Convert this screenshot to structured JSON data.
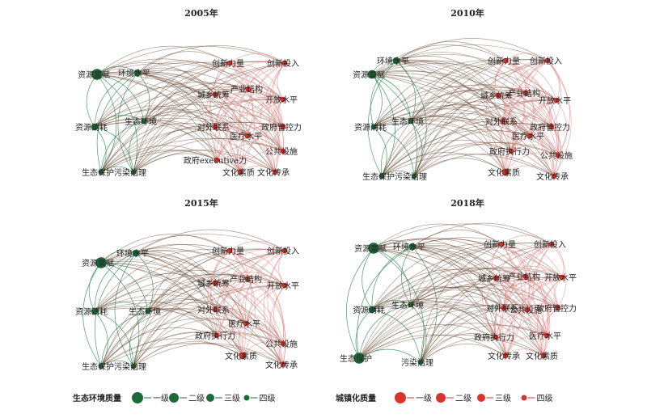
{
  "colors": {
    "eco": "#1e6b3a",
    "urban": "#d9342b",
    "eco_edge": "#2e8b57",
    "mixed_edge": "#6b4a35",
    "urban_edge": "#e07070"
  },
  "panels": [
    {
      "title": "2005年",
      "nodes": [
        {
          "label": "资源禀赋",
          "group": "eco",
          "level": 1
        },
        {
          "label": "环境水平",
          "group": "eco",
          "level": 3
        },
        {
          "label": "资源消耗",
          "group": "eco",
          "level": 3
        },
        {
          "label": "生态保护",
          "group": "eco",
          "level": 4
        },
        {
          "label": "污染治理",
          "group": "eco",
          "level": 4
        },
        {
          "label": "生态环境",
          "group": "eco",
          "level": 4
        },
        {
          "label": "创新力量",
          "group": "urban",
          "level": 4
        },
        {
          "label": "创新投入",
          "group": "urban",
          "level": 4
        },
        {
          "label": "城乡统筹",
          "group": "urban",
          "level": 4
        },
        {
          "label": "产业结构",
          "group": "urban",
          "level": 4
        },
        {
          "label": "开放水平",
          "group": "urban",
          "level": 4
        },
        {
          "label": "对外联系",
          "group": "urban",
          "level": 4
        },
        {
          "label": "政府管控力",
          "group": "urban",
          "level": 4
        },
        {
          "label": "医疗水平",
          "group": "urban",
          "level": 4
        },
        {
          "label": "公共设施",
          "group": "urban",
          "level": 4
        },
        {
          "label": "政府executive力",
          "group": "urban",
          "level": 4
        },
        {
          "label": "文化素质",
          "group": "urban",
          "level": 4
        },
        {
          "label": "文化传承",
          "group": "urban",
          "level": 4
        }
      ]
    },
    {
      "title": "2010年",
      "nodes": [
        {
          "label": "资源禀赋",
          "group": "eco",
          "level": 2
        },
        {
          "label": "环境水平",
          "group": "eco",
          "level": 3
        },
        {
          "label": "资源消耗",
          "group": "eco",
          "level": 4
        },
        {
          "label": "生态环境",
          "group": "eco",
          "level": 4
        },
        {
          "label": "生态保护",
          "group": "eco",
          "level": 4
        },
        {
          "label": "污染治理",
          "group": "eco",
          "level": 4
        },
        {
          "label": "创新力量",
          "group": "urban",
          "level": 4
        },
        {
          "label": "创新投入",
          "group": "urban",
          "level": 4
        },
        {
          "label": "城乡统筹",
          "group": "urban",
          "level": 4
        },
        {
          "label": "产业结构",
          "group": "urban",
          "level": 4
        },
        {
          "label": "开放水平",
          "group": "urban",
          "level": 4
        },
        {
          "label": "对外联系",
          "group": "urban",
          "level": 4
        },
        {
          "label": "医疗水平",
          "group": "urban",
          "level": 4
        },
        {
          "label": "政府管控力",
          "group": "urban",
          "level": 4
        },
        {
          "label": "政府执行力",
          "group": "urban",
          "level": 4
        },
        {
          "label": "公共设施",
          "group": "urban",
          "level": 4
        },
        {
          "label": "文化素质",
          "group": "urban",
          "level": 3
        },
        {
          "label": "文化传承",
          "group": "urban",
          "level": 4
        }
      ]
    },
    {
      "title": "2015年",
      "nodes": [
        {
          "label": "资源禀赋",
          "group": "eco",
          "level": 1
        },
        {
          "label": "环境水平",
          "group": "eco",
          "level": 3
        },
        {
          "label": "资源消耗",
          "group": "eco",
          "level": 3
        },
        {
          "label": "生态环境",
          "group": "eco",
          "level": 4
        },
        {
          "label": "生态保护",
          "group": "eco",
          "level": 4
        },
        {
          "label": "污染治理",
          "group": "eco",
          "level": 4
        },
        {
          "label": "创新力量",
          "group": "urban",
          "level": 4
        },
        {
          "label": "创新投入",
          "group": "urban",
          "level": 4
        },
        {
          "label": "城乡统筹",
          "group": "urban",
          "level": 4
        },
        {
          "label": "产业结构",
          "group": "urban",
          "level": 4
        },
        {
          "label": "开放水平",
          "group": "urban",
          "level": 4
        },
        {
          "label": "对外联系",
          "group": "urban",
          "level": 4
        },
        {
          "label": "医疗水平",
          "group": "urban",
          "level": 4
        },
        {
          "label": "政府执行力",
          "group": "urban",
          "level": 4
        },
        {
          "label": "公共设施",
          "group": "urban",
          "level": 4
        },
        {
          "label": "文化素质",
          "group": "urban",
          "level": 3
        },
        {
          "label": "文化传承",
          "group": "urban",
          "level": 4
        }
      ]
    },
    {
      "title": "2018年",
      "nodes": [
        {
          "label": "资源禀赋",
          "group": "eco",
          "level": 1
        },
        {
          "label": "环境水平",
          "group": "eco",
          "level": 3
        },
        {
          "label": "资源消耗",
          "group": "eco",
          "level": 3
        },
        {
          "label": "生态环境",
          "group": "eco",
          "level": 4
        },
        {
          "label": "生态保护",
          "group": "eco",
          "level": 1
        },
        {
          "label": "污染治理",
          "group": "eco",
          "level": 4
        },
        {
          "label": "创新力量",
          "group": "urban",
          "level": 4
        },
        {
          "label": "创新投入",
          "group": "urban",
          "level": 4
        },
        {
          "label": "城乡统筹",
          "group": "urban",
          "level": 4
        },
        {
          "label": "产业结构",
          "group": "urban",
          "level": 4
        },
        {
          "label": "开放水平",
          "group": "urban",
          "level": 4
        },
        {
          "label": "对外联系",
          "group": "urban",
          "level": 4
        },
        {
          "label": "公共设施",
          "group": "urban",
          "level": 4
        },
        {
          "label": "政府管控力",
          "group": "urban",
          "level": 4
        },
        {
          "label": "政府执行力",
          "group": "urban",
          "level": 4
        },
        {
          "label": "医疗水平",
          "group": "urban",
          "level": 4
        },
        {
          "label": "文化传承",
          "group": "urban",
          "level": 4
        },
        {
          "label": "文化素质",
          "group": "urban",
          "level": 4
        }
      ]
    }
  ],
  "legend": {
    "eco_title": "生态环境质量",
    "urban_title": "城镇化质量",
    "levels": [
      "一级",
      "二级",
      "三级",
      "四级"
    ]
  }
}
